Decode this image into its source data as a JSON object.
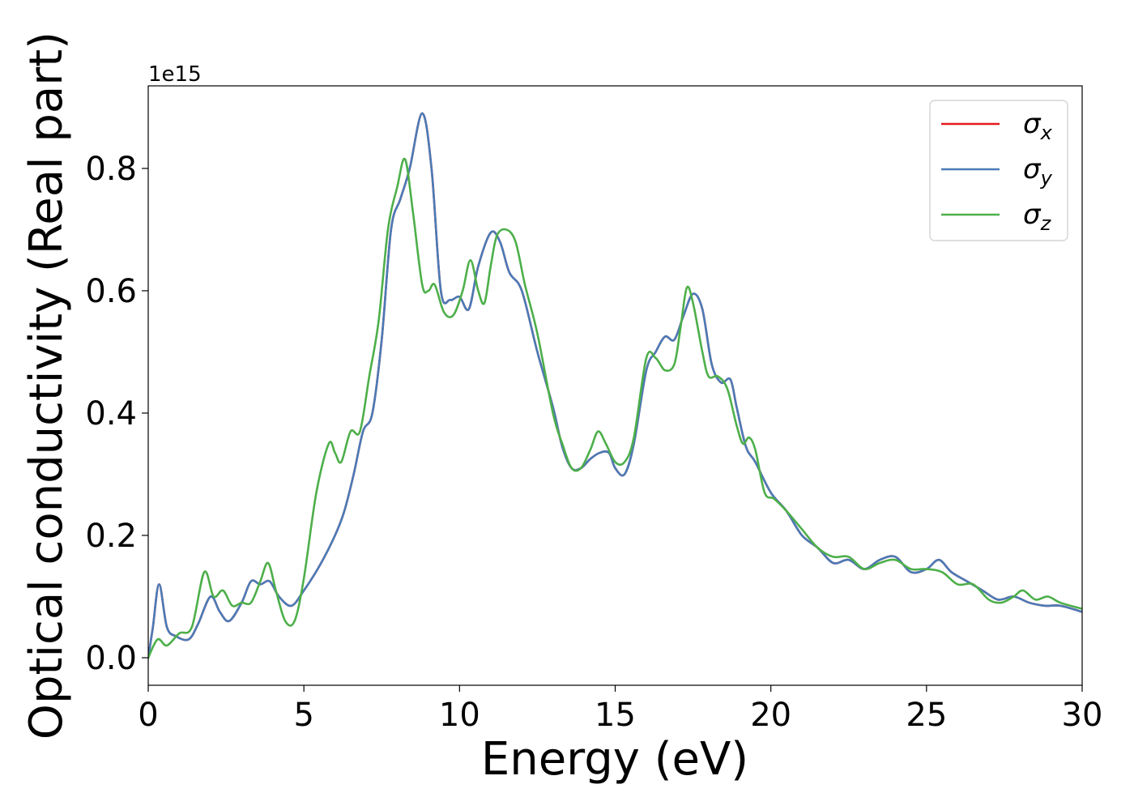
{
  "chart_data": {
    "type": "line",
    "xlabel": "Energy (eV)",
    "ylabel": "Optical conductivity (Real part)",
    "y_offset_label": "1e15",
    "xlim": [
      0,
      30
    ],
    "ylim": [
      -0.045,
      0.935
    ],
    "x_ticks": [
      0,
      5,
      10,
      15,
      20,
      25,
      30
    ],
    "x_tick_labels": [
      "0",
      "5",
      "10",
      "15",
      "20",
      "25",
      "30"
    ],
    "y_ticks": [
      0.0,
      0.2,
      0.4,
      0.6,
      0.8
    ],
    "y_tick_labels": [
      "0.0",
      "0.2",
      "0.4",
      "0.6",
      "0.8"
    ],
    "grid": false,
    "legend_position": "top-right",
    "series": [
      {
        "name": "σx",
        "legend_base": "σ",
        "legend_sub": "x",
        "color": "#e41a1c",
        "x": [
          0,
          0.15,
          0.35,
          0.6,
          0.9,
          1.3,
          1.6,
          2.0,
          2.3,
          2.6,
          3.0,
          3.3,
          3.6,
          3.9,
          4.2,
          4.6,
          5.0,
          5.5,
          6.0,
          6.3,
          6.6,
          6.9,
          7.2,
          7.5,
          7.8,
          8.1,
          8.4,
          8.8,
          9.1,
          9.4,
          9.7,
          10.0,
          10.3,
          10.6,
          11.0,
          11.3,
          11.6,
          12.0,
          12.5,
          13.0,
          13.3,
          13.6,
          13.9,
          14.2,
          14.5,
          14.8,
          15.0,
          15.3,
          15.6,
          16.0,
          16.3,
          16.6,
          16.9,
          17.2,
          17.5,
          17.8,
          18.1,
          18.4,
          18.7,
          18.9,
          19.2,
          19.5,
          20.0,
          20.5,
          21.0,
          21.5,
          22.0,
          22.5,
          23.0,
          23.5,
          24.0,
          24.5,
          25.0,
          25.4,
          25.8,
          26.3,
          26.8,
          27.3,
          27.8,
          28.3,
          28.8,
          29.3,
          30.0
        ],
        "values": [
          0.0,
          0.05,
          0.12,
          0.05,
          0.035,
          0.03,
          0.055,
          0.1,
          0.075,
          0.06,
          0.09,
          0.125,
          0.12,
          0.125,
          0.1,
          0.085,
          0.11,
          0.15,
          0.2,
          0.24,
          0.3,
          0.37,
          0.4,
          0.52,
          0.7,
          0.75,
          0.8,
          0.89,
          0.8,
          0.6,
          0.585,
          0.59,
          0.57,
          0.64,
          0.695,
          0.68,
          0.63,
          0.6,
          0.5,
          0.41,
          0.345,
          0.31,
          0.31,
          0.325,
          0.335,
          0.335,
          0.31,
          0.3,
          0.35,
          0.47,
          0.5,
          0.525,
          0.52,
          0.56,
          0.595,
          0.57,
          0.48,
          0.45,
          0.455,
          0.41,
          0.345,
          0.32,
          0.27,
          0.24,
          0.2,
          0.18,
          0.155,
          0.16,
          0.145,
          0.16,
          0.165,
          0.14,
          0.145,
          0.16,
          0.14,
          0.125,
          0.11,
          0.095,
          0.1,
          0.09,
          0.085,
          0.085,
          0.075
        ]
      },
      {
        "name": "σy",
        "legend_base": "σ",
        "legend_sub": "y",
        "color": "#4a7bb7",
        "x": [
          0,
          0.15,
          0.35,
          0.6,
          0.9,
          1.3,
          1.6,
          2.0,
          2.3,
          2.6,
          3.0,
          3.3,
          3.6,
          3.9,
          4.2,
          4.6,
          5.0,
          5.5,
          6.0,
          6.3,
          6.6,
          6.9,
          7.2,
          7.5,
          7.8,
          8.1,
          8.4,
          8.8,
          9.1,
          9.4,
          9.7,
          10.0,
          10.3,
          10.6,
          11.0,
          11.3,
          11.6,
          12.0,
          12.5,
          13.0,
          13.3,
          13.6,
          13.9,
          14.2,
          14.5,
          14.8,
          15.0,
          15.3,
          15.6,
          16.0,
          16.3,
          16.6,
          16.9,
          17.2,
          17.5,
          17.8,
          18.1,
          18.4,
          18.7,
          18.9,
          19.2,
          19.5,
          20.0,
          20.5,
          21.0,
          21.5,
          22.0,
          22.5,
          23.0,
          23.5,
          24.0,
          24.5,
          25.0,
          25.4,
          25.8,
          26.3,
          26.8,
          27.3,
          27.8,
          28.3,
          28.8,
          29.3,
          30.0
        ],
        "values": [
          0.0,
          0.05,
          0.12,
          0.05,
          0.035,
          0.03,
          0.055,
          0.1,
          0.075,
          0.06,
          0.09,
          0.125,
          0.12,
          0.125,
          0.1,
          0.085,
          0.11,
          0.15,
          0.2,
          0.24,
          0.3,
          0.37,
          0.4,
          0.52,
          0.7,
          0.75,
          0.8,
          0.89,
          0.8,
          0.6,
          0.585,
          0.59,
          0.57,
          0.64,
          0.695,
          0.68,
          0.63,
          0.6,
          0.5,
          0.41,
          0.345,
          0.31,
          0.31,
          0.325,
          0.335,
          0.335,
          0.31,
          0.3,
          0.35,
          0.47,
          0.5,
          0.525,
          0.52,
          0.56,
          0.595,
          0.57,
          0.48,
          0.45,
          0.455,
          0.41,
          0.345,
          0.32,
          0.27,
          0.24,
          0.2,
          0.18,
          0.155,
          0.16,
          0.145,
          0.16,
          0.165,
          0.14,
          0.145,
          0.16,
          0.14,
          0.125,
          0.11,
          0.095,
          0.1,
          0.09,
          0.085,
          0.085,
          0.075
        ]
      },
      {
        "name": "σz",
        "legend_base": "σ",
        "legend_sub": "z",
        "color": "#4daf4a",
        "x": [
          0,
          0.3,
          0.6,
          1.0,
          1.4,
          1.8,
          2.1,
          2.4,
          2.7,
          3.0,
          3.3,
          3.6,
          3.85,
          4.1,
          4.4,
          4.7,
          5.0,
          5.4,
          5.8,
          6.0,
          6.2,
          6.5,
          6.8,
          7.1,
          7.4,
          7.7,
          8.0,
          8.25,
          8.5,
          8.8,
          9.0,
          9.2,
          9.5,
          9.8,
          10.1,
          10.35,
          10.6,
          10.8,
          11.0,
          11.2,
          11.5,
          11.8,
          12.1,
          12.5,
          13.0,
          13.3,
          13.6,
          13.9,
          14.2,
          14.45,
          14.7,
          15.0,
          15.3,
          15.6,
          16.0,
          16.3,
          16.6,
          16.9,
          17.1,
          17.3,
          17.5,
          17.8,
          18.0,
          18.3,
          18.6,
          18.9,
          19.1,
          19.3,
          19.5,
          19.8,
          20.1,
          20.5,
          21.0,
          21.5,
          22.0,
          22.5,
          23.0,
          23.5,
          24.0,
          24.5,
          25.0,
          25.5,
          26.0,
          26.5,
          27.0,
          27.4,
          27.8,
          28.1,
          28.5,
          28.9,
          29.3,
          30.0
        ],
        "values": [
          0.0,
          0.03,
          0.02,
          0.04,
          0.05,
          0.14,
          0.1,
          0.11,
          0.085,
          0.09,
          0.09,
          0.125,
          0.155,
          0.11,
          0.06,
          0.06,
          0.13,
          0.27,
          0.35,
          0.335,
          0.32,
          0.37,
          0.37,
          0.46,
          0.55,
          0.7,
          0.77,
          0.815,
          0.73,
          0.61,
          0.6,
          0.61,
          0.565,
          0.56,
          0.6,
          0.65,
          0.6,
          0.58,
          0.64,
          0.69,
          0.7,
          0.68,
          0.61,
          0.53,
          0.4,
          0.35,
          0.31,
          0.31,
          0.34,
          0.37,
          0.35,
          0.32,
          0.32,
          0.36,
          0.49,
          0.49,
          0.47,
          0.48,
          0.54,
          0.605,
          0.58,
          0.5,
          0.46,
          0.46,
          0.44,
          0.38,
          0.35,
          0.36,
          0.34,
          0.27,
          0.26,
          0.24,
          0.21,
          0.18,
          0.165,
          0.165,
          0.145,
          0.155,
          0.16,
          0.145,
          0.145,
          0.14,
          0.12,
          0.12,
          0.095,
          0.09,
          0.1,
          0.11,
          0.095,
          0.1,
          0.09,
          0.08
        ]
      }
    ]
  }
}
